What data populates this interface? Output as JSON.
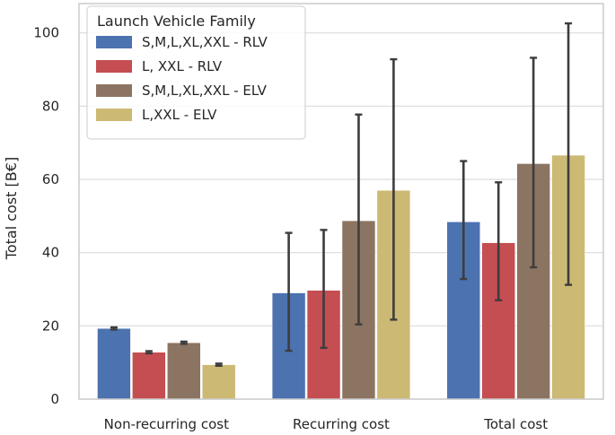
{
  "chart_data": {
    "type": "bar",
    "categories": [
      "Non-recurring cost",
      "Recurring cost",
      "Total cost"
    ],
    "ylabel": "Total cost [B€]",
    "xlabel": "",
    "ylim": [
      0,
      108
    ],
    "yticks": [
      "0",
      "20",
      "40",
      "60",
      "80",
      "100"
    ],
    "ytick_values": [
      0,
      20,
      40,
      60,
      80,
      100
    ],
    "grid": true,
    "legend": {
      "title": "Launch Vehicle Family",
      "placement": "top-left"
    },
    "series": [
      {
        "name": "S,M,L,XL,XXL - RLV",
        "color": "#4c72b0",
        "values": [
          19.3,
          29.0,
          48.4
        ],
        "err_low": [
          19.0,
          13.2,
          32.8
        ],
        "err_high": [
          19.6,
          45.4,
          65.0
        ]
      },
      {
        "name": "L, XXL - RLV",
        "color": "#c44e52",
        "values": [
          12.8,
          29.7,
          42.7
        ],
        "err_low": [
          12.5,
          14.0,
          27.0
        ],
        "err_high": [
          13.1,
          46.2,
          59.2
        ]
      },
      {
        "name": "S,M,L,XL,XXL - ELV",
        "color": "#8c7462",
        "values": [
          15.4,
          48.7,
          64.3
        ],
        "err_low": [
          15.1,
          20.4,
          36.0
        ],
        "err_high": [
          15.7,
          77.7,
          93.2
        ]
      },
      {
        "name": "L,XXL - ELV",
        "color": "#ccb974",
        "values": [
          9.4,
          57.0,
          66.6
        ],
        "err_low": [
          9.1,
          21.7,
          31.2
        ],
        "err_high": [
          9.7,
          92.8,
          102.6
        ]
      }
    ]
  }
}
